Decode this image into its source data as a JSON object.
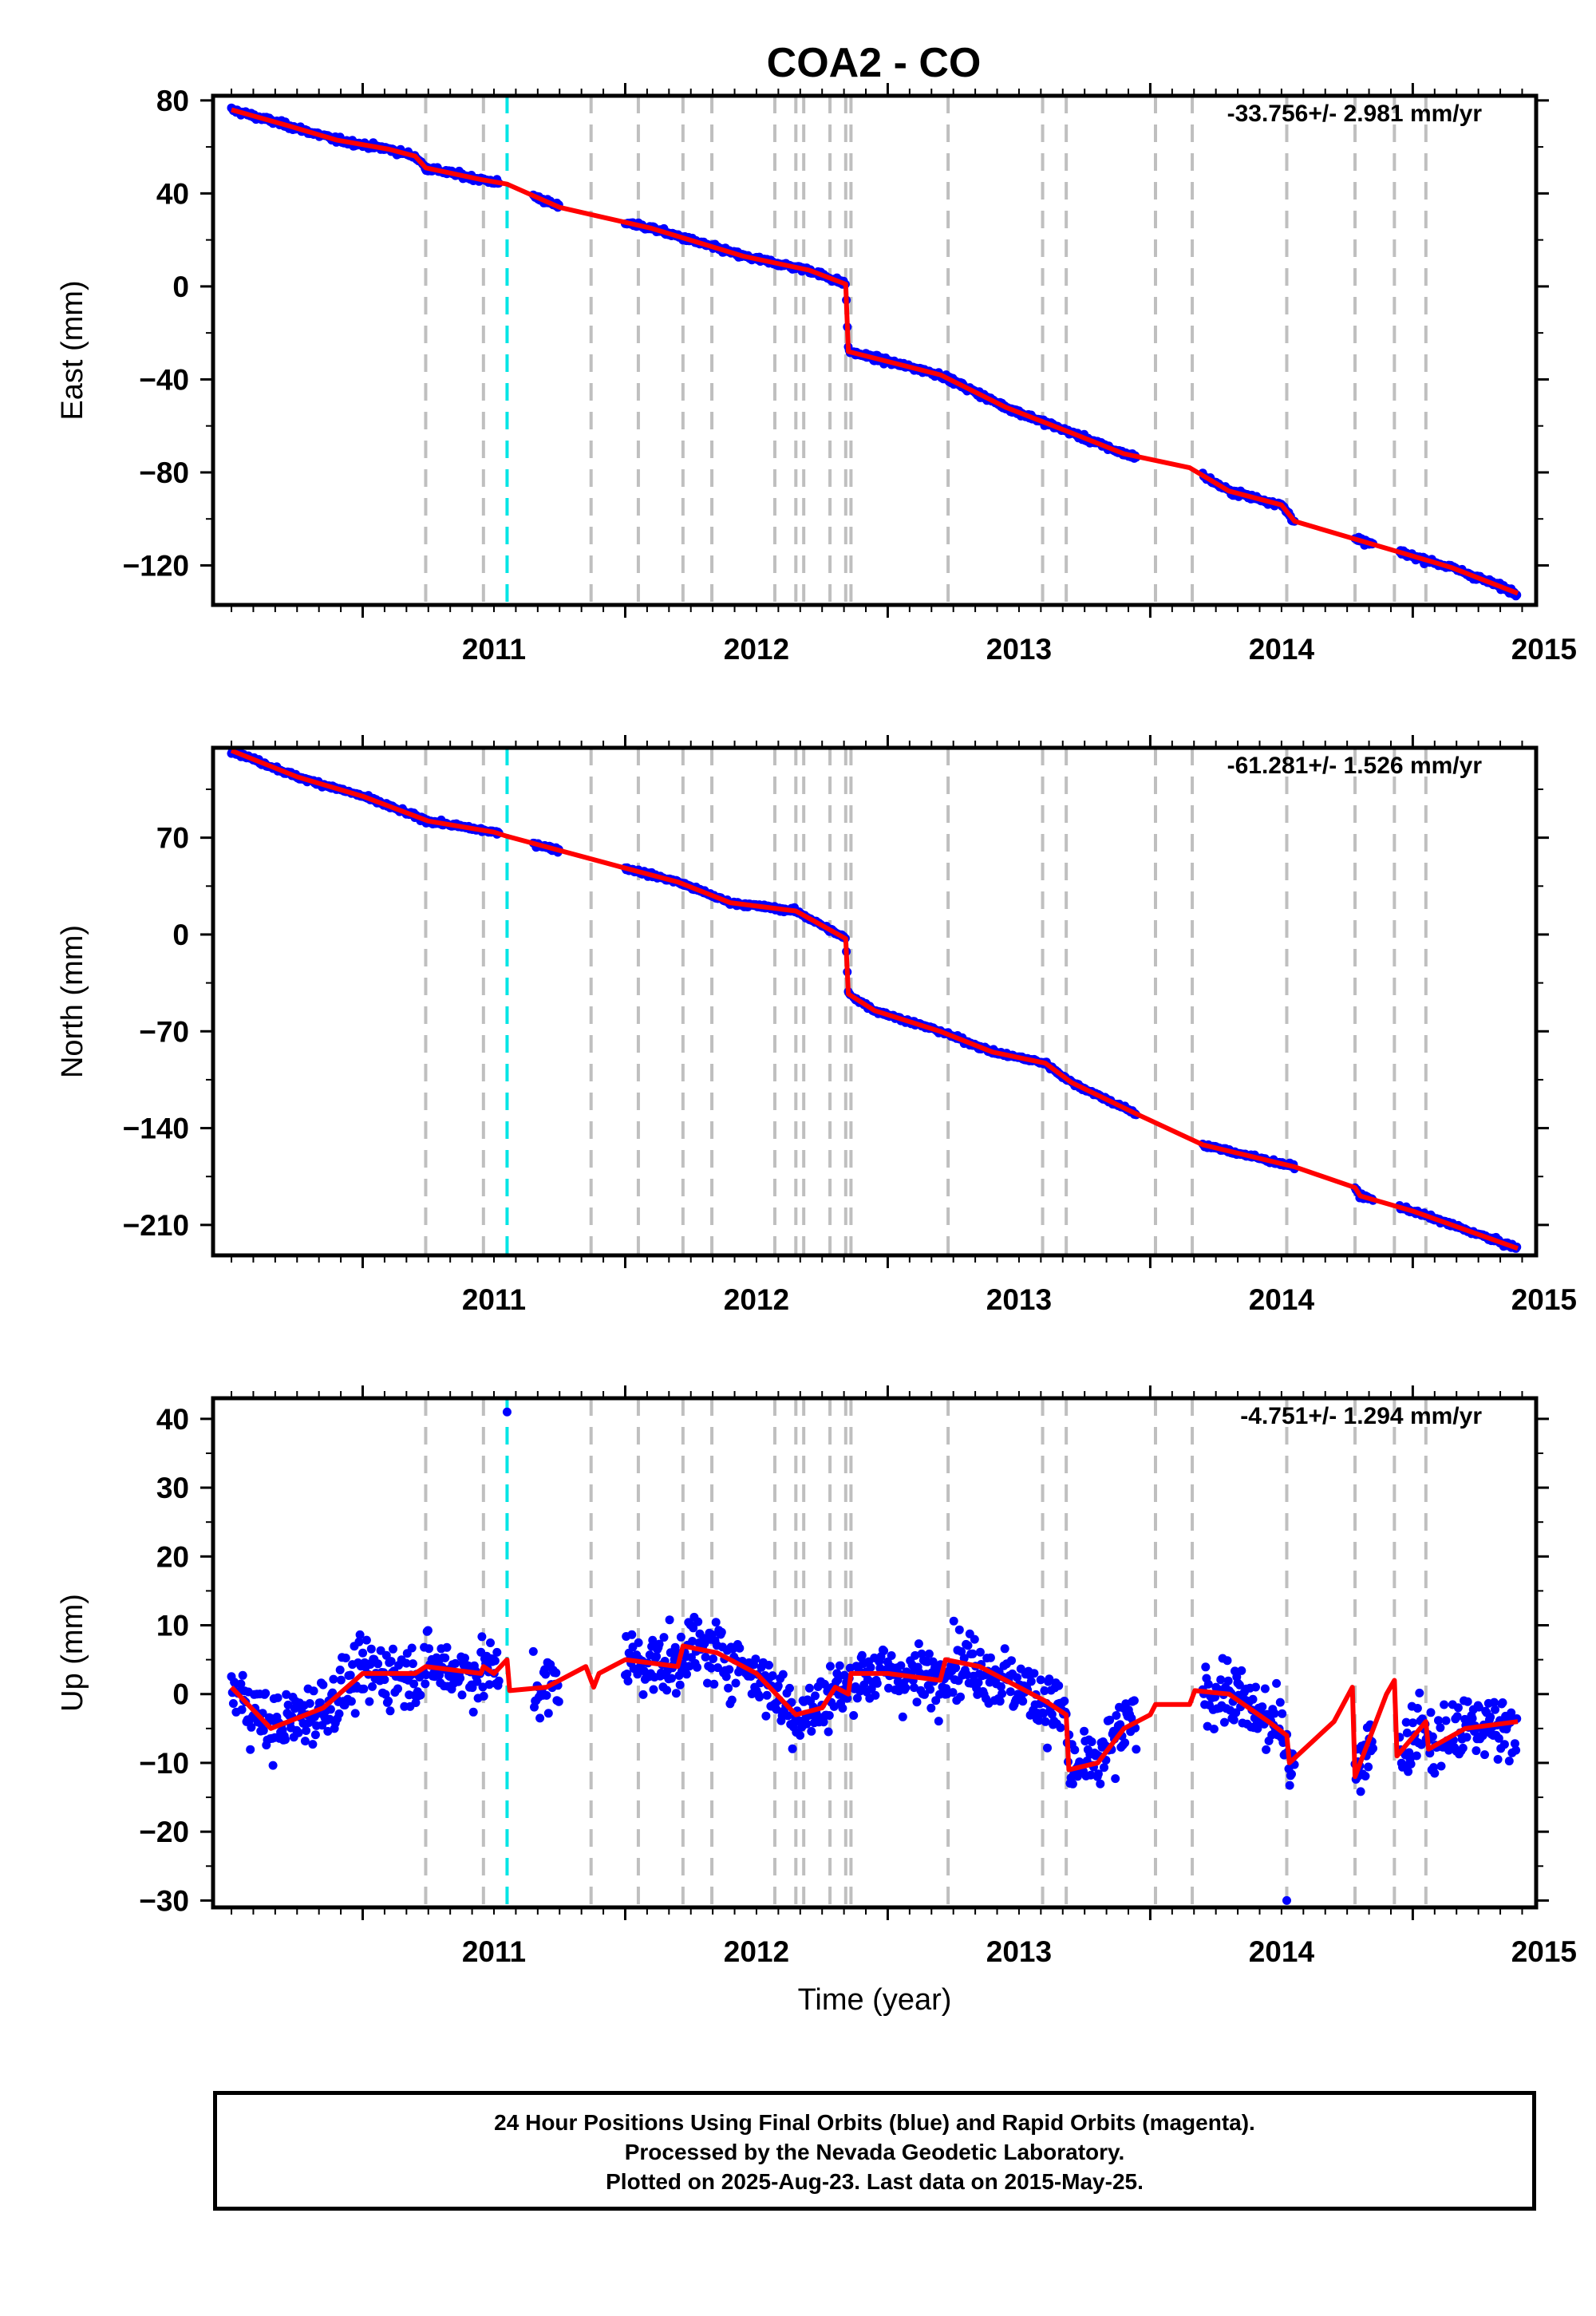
{
  "title": "COA2 - CO",
  "footer": {
    "line1": "24 Hour Positions Using Final Orbits (blue) and Rapid Orbits (magenta).",
    "line2": "Processed by the Nevada Geodetic Laboratory.",
    "line3": "Plotted on 2025-Aug-23. Last data on 2015-May-25."
  },
  "colors": {
    "data": "#0000ff",
    "model": "#ff0000",
    "event": "#bfbfbf",
    "highlight_event": "#00e5e5",
    "frame": "#000000"
  },
  "chart_data": [
    {
      "type": "scatter",
      "component": "East",
      "ylabel": "East (mm)",
      "xlabel": "",
      "rate_label": "-33.756+/- 2.981 mm/yr",
      "xlim": [
        2010.43,
        2015.47
      ],
      "ylim": [
        -137,
        82
      ],
      "xticks": [
        2011,
        2012,
        2013,
        2014,
        2015
      ],
      "yticks": [
        80,
        40,
        0,
        -40,
        -80,
        -120
      ],
      "model_knots": [
        [
          2010.5,
          76
        ],
        [
          2010.72,
          69
        ],
        [
          2010.9,
          63
        ],
        [
          2011.1,
          59
        ],
        [
          2011.2,
          56
        ],
        [
          2011.24,
          51
        ],
        [
          2011.45,
          46
        ],
        [
          2011.55,
          44
        ],
        [
          2011.75,
          34
        ],
        [
          2012.1,
          25
        ],
        [
          2012.45,
          13
        ],
        [
          2012.7,
          7
        ],
        [
          2012.84,
          1
        ],
        [
          2012.85,
          -28
        ],
        [
          2013.2,
          -38
        ],
        [
          2013.45,
          -52
        ],
        [
          2013.7,
          -63
        ],
        [
          2013.9,
          -72
        ],
        [
          2014.15,
          -78
        ],
        [
          2014.3,
          -88
        ],
        [
          2014.5,
          -94
        ],
        [
          2014.55,
          -101
        ],
        [
          2014.85,
          -111
        ],
        [
          2015.0,
          -116
        ],
        [
          2015.15,
          -121
        ],
        [
          2015.4,
          -132
        ]
      ],
      "data_ranges": [
        [
          2010.5,
          2011.52
        ],
        [
          2011.65,
          2011.75
        ],
        [
          2012.0,
          2012.86
        ],
        [
          2012.87,
          2013.95
        ],
        [
          2014.2,
          2014.55
        ],
        [
          2014.78,
          2014.85
        ],
        [
          2014.95,
          2015.4
        ]
      ]
    },
    {
      "type": "scatter",
      "component": "North",
      "ylabel": "North (mm)",
      "xlabel": "",
      "rate_label": "-61.281+/- 1.526 mm/yr",
      "xlim": [
        2010.43,
        2015.47
      ],
      "ylim": [
        -232,
        135
      ],
      "xticks": [
        2011,
        2012,
        2013,
        2014,
        2015
      ],
      "yticks": [
        70,
        0,
        -70,
        -140,
        -210
      ],
      "model_knots": [
        [
          2010.5,
          133
        ],
        [
          2010.75,
          114
        ],
        [
          2011.0,
          100
        ],
        [
          2011.25,
          82
        ],
        [
          2011.5,
          74
        ],
        [
          2011.55,
          71
        ],
        [
          2012.0,
          48
        ],
        [
          2012.2,
          38
        ],
        [
          2012.4,
          23
        ],
        [
          2012.65,
          17
        ],
        [
          2012.84,
          -3
        ],
        [
          2012.85,
          -43
        ],
        [
          2012.95,
          -55
        ],
        [
          2013.2,
          -70
        ],
        [
          2013.4,
          -85
        ],
        [
          2013.6,
          -93
        ],
        [
          2013.7,
          -107
        ],
        [
          2013.95,
          -130
        ],
        [
          2014.2,
          -152
        ],
        [
          2014.55,
          -168
        ],
        [
          2014.78,
          -183
        ],
        [
          2014.8,
          -189
        ],
        [
          2015.0,
          -200
        ],
        [
          2015.4,
          -227
        ]
      ],
      "data_ranges": [
        [
          2010.5,
          2011.52
        ],
        [
          2011.65,
          2011.75
        ],
        [
          2012.0,
          2012.86
        ],
        [
          2012.87,
          2013.95
        ],
        [
          2014.2,
          2014.55
        ],
        [
          2014.78,
          2014.85
        ],
        [
          2014.95,
          2015.4
        ]
      ]
    },
    {
      "type": "scatter",
      "component": "Up",
      "ylabel": "Up (mm)",
      "xlabel": "Time (year)",
      "rate_label": "-4.751+/- 1.294 mm/yr",
      "xlim": [
        2010.43,
        2015.47
      ],
      "ylim": [
        -31,
        43
      ],
      "xticks": [
        2011,
        2012,
        2013,
        2014,
        2015
      ],
      "yticks": [
        40,
        30,
        20,
        10,
        0,
        -10,
        -20,
        -30
      ],
      "model_knots": [
        [
          2010.5,
          1
        ],
        [
          2010.65,
          -5
        ],
        [
          2010.85,
          -2
        ],
        [
          2011.0,
          3
        ],
        [
          2011.2,
          3
        ],
        [
          2011.24,
          4
        ],
        [
          2011.45,
          3
        ],
        [
          2011.46,
          4
        ],
        [
          2011.5,
          3
        ],
        [
          2011.55,
          5
        ],
        [
          2011.56,
          0.5
        ],
        [
          2011.7,
          1
        ],
        [
          2011.85,
          4
        ],
        [
          2011.88,
          1
        ],
        [
          2011.9,
          3
        ],
        [
          2012.0,
          5
        ],
        [
          2012.2,
          4
        ],
        [
          2012.22,
          7
        ],
        [
          2012.35,
          6
        ],
        [
          2012.5,
          3
        ],
        [
          2012.65,
          -3
        ],
        [
          2012.75,
          -2
        ],
        [
          2012.8,
          1
        ],
        [
          2012.85,
          0
        ],
        [
          2012.86,
          3
        ],
        [
          2013.0,
          3
        ],
        [
          2013.2,
          2
        ],
        [
          2013.22,
          5
        ],
        [
          2013.35,
          4
        ],
        [
          2013.6,
          -1
        ],
        [
          2013.68,
          -3
        ],
        [
          2013.69,
          -11
        ],
        [
          2013.8,
          -10
        ],
        [
          2013.9,
          -5
        ],
        [
          2014.0,
          -3
        ],
        [
          2014.02,
          -1.5
        ],
        [
          2014.15,
          -1.5
        ],
        [
          2014.17,
          0.5
        ],
        [
          2014.3,
          0
        ],
        [
          2014.45,
          -4
        ],
        [
          2014.52,
          -6
        ],
        [
          2014.53,
          -10
        ],
        [
          2014.7,
          -4
        ],
        [
          2014.77,
          1
        ],
        [
          2014.78,
          -12
        ],
        [
          2014.9,
          0
        ],
        [
          2014.93,
          2
        ],
        [
          2014.94,
          -9
        ],
        [
          2015.05,
          -4
        ],
        [
          2015.06,
          -8
        ],
        [
          2015.2,
          -5
        ],
        [
          2015.4,
          -4
        ]
      ],
      "data_ranges": [
        [
          2010.5,
          2011.52
        ],
        [
          2011.65,
          2011.75
        ],
        [
          2012.0,
          2012.86
        ],
        [
          2012.87,
          2013.95
        ],
        [
          2014.2,
          2014.55
        ],
        [
          2014.78,
          2014.85
        ],
        [
          2014.95,
          2015.4
        ]
      ],
      "outliers": [
        [
          2011.55,
          41
        ],
        [
          2014.52,
          -30
        ]
      ]
    }
  ],
  "events": {
    "dashed_gray": [
      2011.24,
      2011.46,
      2011.87,
      2012.05,
      2012.22,
      2012.33,
      2012.57,
      2012.65,
      2012.68,
      2012.78,
      2012.84,
      2012.86,
      2013.23,
      2013.59,
      2013.68,
      2014.02,
      2014.16,
      2014.52,
      2014.78,
      2014.93,
      2015.05
    ],
    "dashed_cyan": [
      2011.55
    ]
  }
}
